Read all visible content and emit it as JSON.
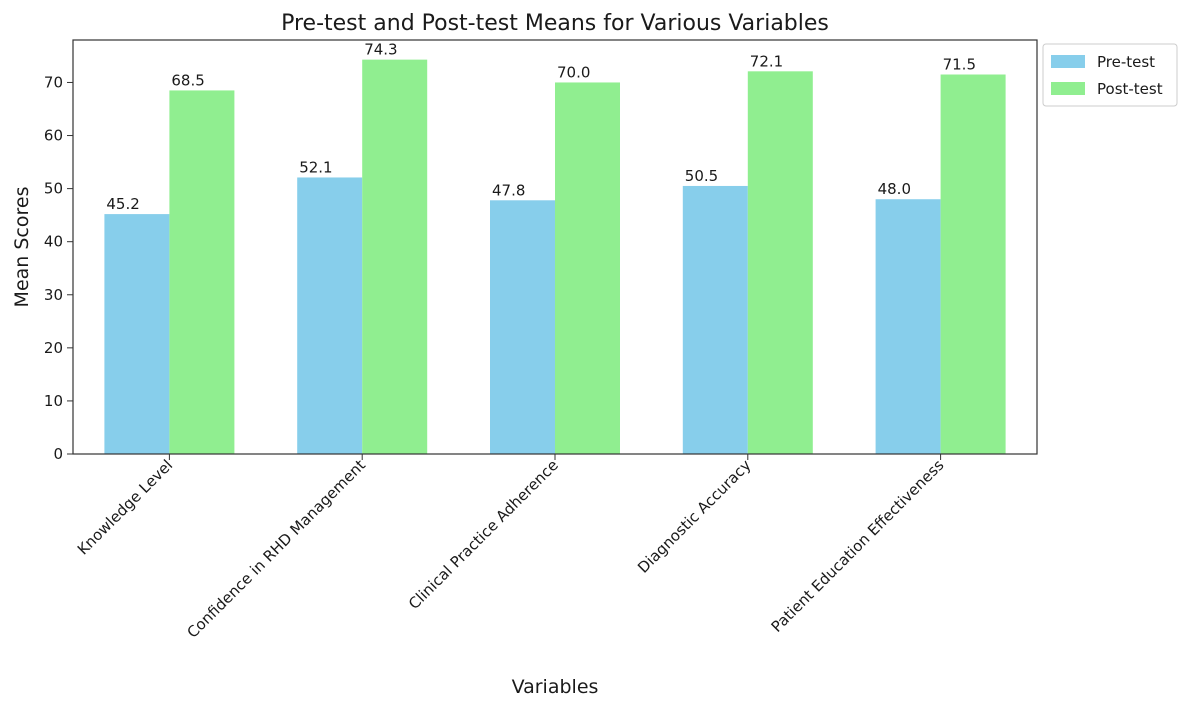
{
  "chart_data": {
    "type": "bar",
    "title": "Pre-test and Post-test Means for Various Variables",
    "xlabel": "Variables",
    "ylabel": "Mean Scores",
    "categories": [
      "Knowledge Level",
      "Confidence in RHD Management",
      "Clinical Practice Adherence",
      "Diagnostic Accuracy",
      "Patient Education Effectiveness"
    ],
    "series": [
      {
        "name": "Pre-test",
        "values": [
          45.2,
          52.1,
          47.8,
          50.5,
          48.0
        ],
        "labels": [
          "45.2",
          "52.1",
          "47.8",
          "50.5",
          "48.0"
        ],
        "color": "#87CEEB"
      },
      {
        "name": "Post-test",
        "values": [
          68.5,
          74.3,
          70.0,
          72.1,
          71.5
        ],
        "labels": [
          "68.5",
          "74.3",
          "70.0",
          "72.1",
          "71.5"
        ],
        "color": "#90EE90"
      }
    ],
    "ylim": [
      0,
      78
    ],
    "yticks": [
      0,
      10,
      20,
      30,
      40,
      50,
      60,
      70
    ],
    "grid": false,
    "legend_position": "outside-top-right"
  }
}
